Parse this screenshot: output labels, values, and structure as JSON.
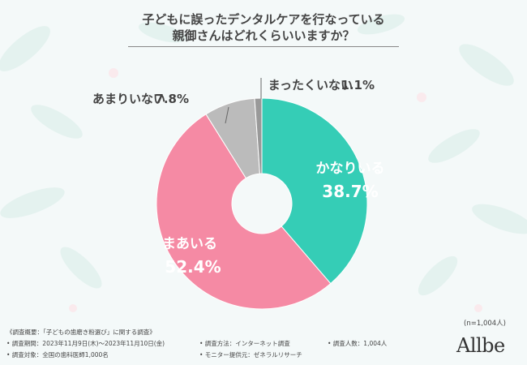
{
  "title_lines": [
    "子どもに誤ったデンタルケアを行なっている",
    "親御さんはどれくらいいますか？"
  ],
  "sample_size": "(n=1,004人)",
  "notes": {
    "survey_summary": "《調査概要：「子どもの歯磨き粉選び」に関する調査》",
    "period": "• 調査期間：2023年11月9日(木)～2023年11月10日(金)",
    "target": "• 調査対象：全国の歯科医師1,000名",
    "method": "• 調査方法：インターネット調査",
    "provider": "• モニター提供元：ゼネラルリサーチ",
    "count": "• 調査人数：1,004人"
  },
  "brand": "Allbe",
  "colors": {
    "teal": "#35cdb6",
    "pink": "#f58aa4",
    "gray": "#bbbbbb",
    "darkgray": "#999999"
  },
  "chart_data": {
    "type": "pie",
    "donut": true,
    "slices": [
      {
        "label": "かなりいる",
        "value": 38.7,
        "value_text": "38.7%",
        "color": "#35cdb6"
      },
      {
        "label": "まあいる",
        "value": 52.4,
        "value_text": "52.4%",
        "color": "#f58aa4"
      },
      {
        "label": "あまりいない",
        "value": 7.8,
        "value_text": "7.8%",
        "color": "#bbbbbb"
      },
      {
        "label": "まったくいない",
        "value": 1.1,
        "value_text": "1.1%",
        "color": "#999999"
      }
    ]
  }
}
